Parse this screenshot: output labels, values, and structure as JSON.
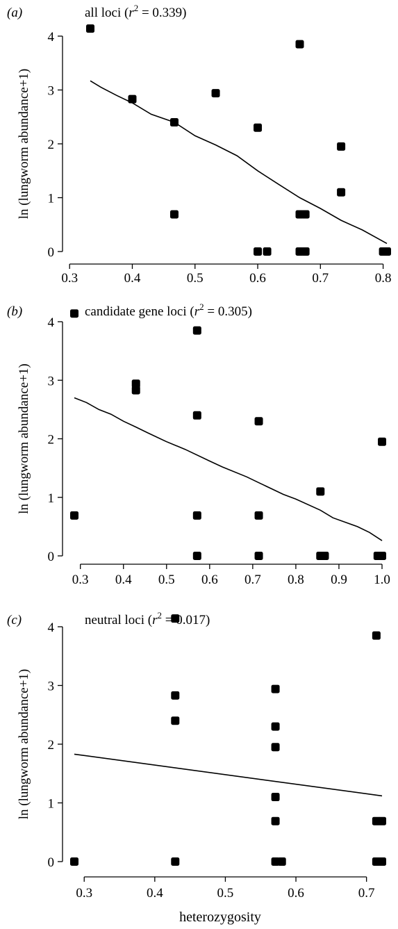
{
  "figure": {
    "xlabel": "heterozygosity",
    "ylabel": "ln (lungworm abundance+1)"
  },
  "chart_data": [
    {
      "type": "scatter",
      "panel": "(a)",
      "title": "all loci (r² = 0.339)",
      "title_parts": {
        "text": "all loci (",
        "r": "r",
        "sup": "2",
        "rest": " = 0.339)"
      },
      "xlabel": "",
      "ylabel": "ln (lungworm abundance+1)",
      "xlim": [
        0.29,
        0.81
      ],
      "ylim": [
        0,
        4.2
      ],
      "xticks": [
        0.3,
        0.4,
        0.5,
        0.6,
        0.7,
        0.8
      ],
      "xticklabels": [
        "0.3",
        "0.4",
        "0.5",
        "0.6",
        "0.7",
        "0.8"
      ],
      "yticks": [
        0,
        1,
        2,
        3,
        4
      ],
      "yticklabels": [
        "0",
        "1",
        "2",
        "3",
        "4"
      ],
      "grid": false,
      "points": [
        {
          "x": 0.333,
          "y": 4.14
        },
        {
          "x": 0.4,
          "y": 2.83
        },
        {
          "x": 0.467,
          "y": 2.4
        },
        {
          "x": 0.467,
          "y": 0.69
        },
        {
          "x": 0.533,
          "y": 2.94
        },
        {
          "x": 0.6,
          "y": 2.3
        },
        {
          "x": 0.6,
          "y": 0
        },
        {
          "x": 0.615,
          "y": 0
        },
        {
          "x": 0.667,
          "y": 3.85
        },
        {
          "x": 0.667,
          "y": 0.69
        },
        {
          "x": 0.667,
          "y": 0
        },
        {
          "x": 0.676,
          "y": 0.69
        },
        {
          "x": 0.676,
          "y": 0
        },
        {
          "x": 0.733,
          "y": 1.95
        },
        {
          "x": 0.733,
          "y": 1.1
        },
        {
          "x": 0.8,
          "y": 0
        },
        {
          "x": 0.806,
          "y": 0
        }
      ],
      "fit_line": [
        {
          "x": 0.333,
          "y": 3.17
        },
        {
          "x": 0.35,
          "y": 3.05
        },
        {
          "x": 0.375,
          "y": 2.9
        },
        {
          "x": 0.4,
          "y": 2.76
        },
        {
          "x": 0.43,
          "y": 2.55
        },
        {
          "x": 0.467,
          "y": 2.4
        },
        {
          "x": 0.5,
          "y": 2.15
        },
        {
          "x": 0.533,
          "y": 1.98
        },
        {
          "x": 0.567,
          "y": 1.78
        },
        {
          "x": 0.6,
          "y": 1.5
        },
        {
          "x": 0.633,
          "y": 1.25
        },
        {
          "x": 0.667,
          "y": 1.0
        },
        {
          "x": 0.7,
          "y": 0.8
        },
        {
          "x": 0.733,
          "y": 0.58
        },
        {
          "x": 0.767,
          "y": 0.4
        },
        {
          "x": 0.806,
          "y": 0.15
        }
      ]
    },
    {
      "type": "scatter",
      "panel": "(b)",
      "title": "candidate gene loci (r² = 0.305)",
      "title_parts": {
        "text": "candidate gene loci (",
        "r": "r",
        "sup": "2",
        "rest": " = 0.305)"
      },
      "xlabel": "",
      "ylabel": "ln (lungworm abundance+1)",
      "xlim": [
        0.25,
        1.02
      ],
      "ylim": [
        0,
        4.2
      ],
      "xticks": [
        0.3,
        0.4,
        0.5,
        0.6,
        0.7,
        0.8,
        0.9,
        1.0
      ],
      "xticklabels": [
        "0.3",
        "0.4",
        "0.5",
        "0.6",
        "0.7",
        "0.8",
        "0.9",
        "1.0"
      ],
      "yticks": [
        0,
        1,
        2,
        3,
        4
      ],
      "yticklabels": [
        "0",
        "1",
        "2",
        "3",
        "4"
      ],
      "grid": false,
      "points": [
        {
          "x": 0.286,
          "y": 4.14
        },
        {
          "x": 0.286,
          "y": 0.69
        },
        {
          "x": 0.429,
          "y": 2.94
        },
        {
          "x": 0.429,
          "y": 2.83
        },
        {
          "x": 0.571,
          "y": 3.85
        },
        {
          "x": 0.571,
          "y": 2.4
        },
        {
          "x": 0.571,
          "y": 0.69
        },
        {
          "x": 0.571,
          "y": 0
        },
        {
          "x": 0.714,
          "y": 2.3
        },
        {
          "x": 0.714,
          "y": 0.69
        },
        {
          "x": 0.714,
          "y": 0
        },
        {
          "x": 0.857,
          "y": 1.1
        },
        {
          "x": 0.857,
          "y": 0
        },
        {
          "x": 0.867,
          "y": 0
        },
        {
          "x": 0.99,
          "y": 0
        },
        {
          "x": 1.0,
          "y": 1.95
        },
        {
          "x": 1.0,
          "y": 0
        }
      ],
      "fit_line": [
        {
          "x": 0.286,
          "y": 2.7
        },
        {
          "x": 0.314,
          "y": 2.62
        },
        {
          "x": 0.343,
          "y": 2.5
        },
        {
          "x": 0.371,
          "y": 2.42
        },
        {
          "x": 0.4,
          "y": 2.3
        },
        {
          "x": 0.429,
          "y": 2.2
        },
        {
          "x": 0.457,
          "y": 2.1
        },
        {
          "x": 0.5,
          "y": 1.95
        },
        {
          "x": 0.543,
          "y": 1.82
        },
        {
          "x": 0.6,
          "y": 1.62
        },
        {
          "x": 0.629,
          "y": 1.52
        },
        {
          "x": 0.686,
          "y": 1.35
        },
        {
          "x": 0.714,
          "y": 1.25
        },
        {
          "x": 0.771,
          "y": 1.05
        },
        {
          "x": 0.8,
          "y": 0.97
        },
        {
          "x": 0.857,
          "y": 0.78
        },
        {
          "x": 0.886,
          "y": 0.65
        },
        {
          "x": 0.943,
          "y": 0.5
        },
        {
          "x": 0.971,
          "y": 0.4
        },
        {
          "x": 1.0,
          "y": 0.26
        }
      ]
    },
    {
      "type": "scatter",
      "panel": "(c)",
      "title": "neutral loci (r² = 0.017)",
      "title_parts": {
        "text": "neutral loci (",
        "r": "r",
        "sup": "2",
        "rest": " = 0.017)"
      },
      "xlabel": "heterozygosity",
      "ylabel": "ln (lungworm abundance+1)",
      "xlim": [
        0.26,
        0.73
      ],
      "ylim": [
        0,
        4.2
      ],
      "xticks": [
        0.3,
        0.4,
        0.5,
        0.6,
        0.7
      ],
      "xticklabels": [
        "0.3",
        "0.4",
        "0.5",
        "0.6",
        "0.7"
      ],
      "yticks": [
        0,
        1,
        2,
        3,
        4
      ],
      "yticklabels": [
        "0",
        "1",
        "2",
        "3",
        "4"
      ],
      "grid": false,
      "points": [
        {
          "x": 0.286,
          "y": 0
        },
        {
          "x": 0.429,
          "y": 4.14
        },
        {
          "x": 0.429,
          "y": 2.83
        },
        {
          "x": 0.429,
          "y": 2.4
        },
        {
          "x": 0.429,
          "y": 0
        },
        {
          "x": 0.571,
          "y": 2.94
        },
        {
          "x": 0.571,
          "y": 2.3
        },
        {
          "x": 0.571,
          "y": 1.95
        },
        {
          "x": 0.571,
          "y": 1.1
        },
        {
          "x": 0.571,
          "y": 0.69
        },
        {
          "x": 0.571,
          "y": 0
        },
        {
          "x": 0.58,
          "y": 0
        },
        {
          "x": 0.714,
          "y": 3.85
        },
        {
          "x": 0.714,
          "y": 0.69
        },
        {
          "x": 0.714,
          "y": 0
        },
        {
          "x": 0.722,
          "y": 0.69
        },
        {
          "x": 0.722,
          "y": 0
        }
      ],
      "fit_line": [
        {
          "x": 0.286,
          "y": 1.83
        },
        {
          "x": 0.722,
          "y": 1.12
        }
      ]
    }
  ]
}
